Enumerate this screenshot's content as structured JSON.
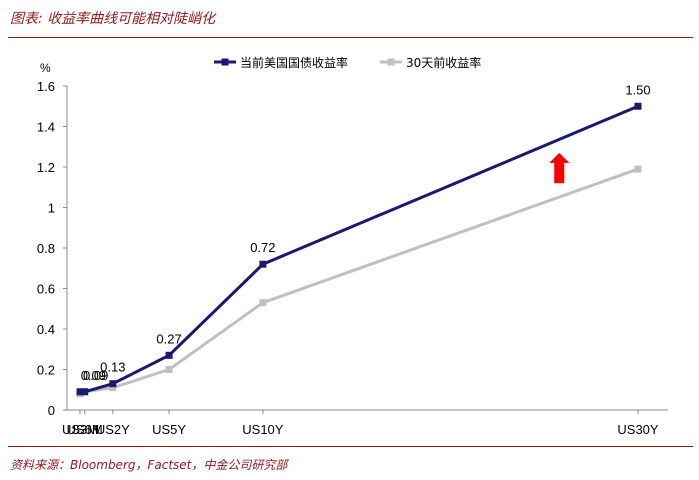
{
  "header": {
    "title": "图表: 收益率曲线可能相对陡峭化"
  },
  "footer": {
    "source": "资料来源：Bloomberg，Factset，中金公司研究部"
  },
  "colors": {
    "accent": "#8b1a1a",
    "series_current": "#191970",
    "series_prior": "#c0c0c0",
    "arrow": "#ff0000"
  },
  "chart_data": {
    "type": "line",
    "ylabel": "%",
    "ylim": [
      0,
      1.6
    ],
    "yticks": [
      "0",
      "0.2",
      "0.4",
      "0.6",
      "0.8",
      "1",
      "1.2",
      "1.4",
      "1.6"
    ],
    "x_positions_years": [
      0.25,
      0.5,
      2,
      5,
      10,
      30
    ],
    "categories": [
      "US3M",
      "US6M",
      "US2Y",
      "US5Y",
      "US10Y",
      "US30Y"
    ],
    "series": [
      {
        "name": "当前美国国债收益率",
        "color": "#191970",
        "values": [
          0.09,
          0.09,
          0.13,
          0.27,
          0.72,
          1.5
        ],
        "labels": [
          "0.09",
          "0.09",
          "0.13",
          "0.27",
          "0.72",
          "1.50"
        ]
      },
      {
        "name": "30天前收益率",
        "color": "#c0c0c0",
        "values": [
          0.08,
          0.09,
          0.11,
          0.2,
          0.53,
          1.19
        ]
      }
    ],
    "legend_position": "top",
    "annotation": "red up-arrow between series near US30Y"
  }
}
